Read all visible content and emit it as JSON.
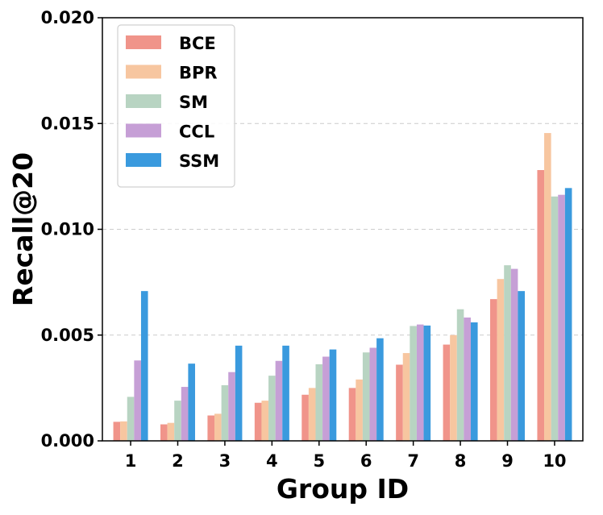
{
  "chart_data": {
    "type": "bar",
    "title": "",
    "xlabel": "Group ID",
    "ylabel": "Recall@20",
    "categories": [
      "1",
      "2",
      "3",
      "4",
      "5",
      "6",
      "7",
      "8",
      "9",
      "10"
    ],
    "ylim": [
      0,
      0.02
    ],
    "yticks": [
      "0.000",
      "0.005",
      "0.010",
      "0.015",
      "0.020"
    ],
    "grid": true,
    "legend_position": "top-left",
    "series": [
      {
        "name": "BCE",
        "color": "#f0948a",
        "values": [
          0.0009,
          0.00078,
          0.0012,
          0.0018,
          0.00218,
          0.0025,
          0.0036,
          0.00455,
          0.0067,
          0.0128
        ]
      },
      {
        "name": "BPR",
        "color": "#f7c6a0",
        "values": [
          0.00092,
          0.00085,
          0.00128,
          0.0019,
          0.0025,
          0.0029,
          0.00415,
          0.005,
          0.00765,
          0.01455
        ]
      },
      {
        "name": "SM",
        "color": "#b8d4c2",
        "values": [
          0.00208,
          0.0019,
          0.00263,
          0.00308,
          0.00362,
          0.00418,
          0.00543,
          0.00622,
          0.0083,
          0.01155
        ]
      },
      {
        "name": "CCL",
        "color": "#c69fd6",
        "values": [
          0.0038,
          0.00255,
          0.00325,
          0.00378,
          0.00398,
          0.0044,
          0.0055,
          0.00583,
          0.00813,
          0.01163
        ]
      },
      {
        "name": "SSM",
        "color": "#3a9ade",
        "values": [
          0.00708,
          0.00365,
          0.0045,
          0.0045,
          0.00432,
          0.00485,
          0.00545,
          0.0056,
          0.00708,
          0.01195
        ]
      }
    ]
  }
}
